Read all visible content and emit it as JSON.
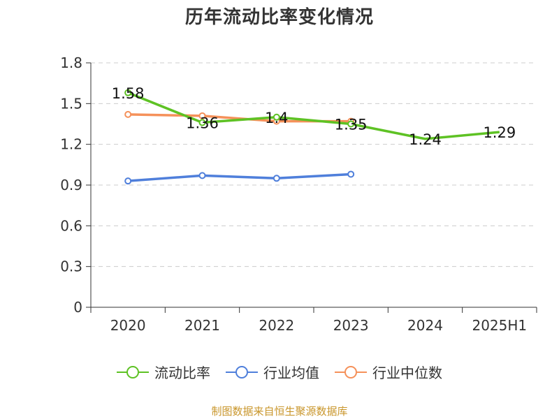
{
  "colors": {
    "current_ratio": "#5ec224",
    "industry_mean": "#4f7fdb",
    "industry_median": "#f5915a",
    "source": "#c9962b"
  },
  "chart_data": {
    "type": "line",
    "title": "历年流动比率变化情况",
    "categories": [
      "2020",
      "2021",
      "2022",
      "2023",
      "2024",
      "2025H1"
    ],
    "ylim": [
      0,
      1.8
    ],
    "yticks": [
      "0",
      "0.3",
      "0.6",
      "0.9",
      "1.2",
      "1.5",
      "1.8"
    ],
    "grid": true,
    "legend_position": "bottom",
    "series": [
      {
        "name": "流动比率",
        "color_key": "current_ratio",
        "values": [
          1.58,
          1.36,
          1.4,
          1.35,
          1.24,
          1.29
        ],
        "labels": [
          "1.58",
          "1.36",
          "1.4",
          "1.35",
          "1.24",
          "1.29"
        ]
      },
      {
        "name": "行业均值",
        "color_key": "industry_mean",
        "values": [
          0.93,
          0.97,
          0.95,
          0.98,
          null,
          null
        ]
      },
      {
        "name": "行业中位数",
        "color_key": "industry_median",
        "values": [
          1.42,
          1.41,
          1.37,
          1.37,
          null,
          null
        ]
      }
    ]
  },
  "source_note": "制图数据来自恒生聚源数据库"
}
